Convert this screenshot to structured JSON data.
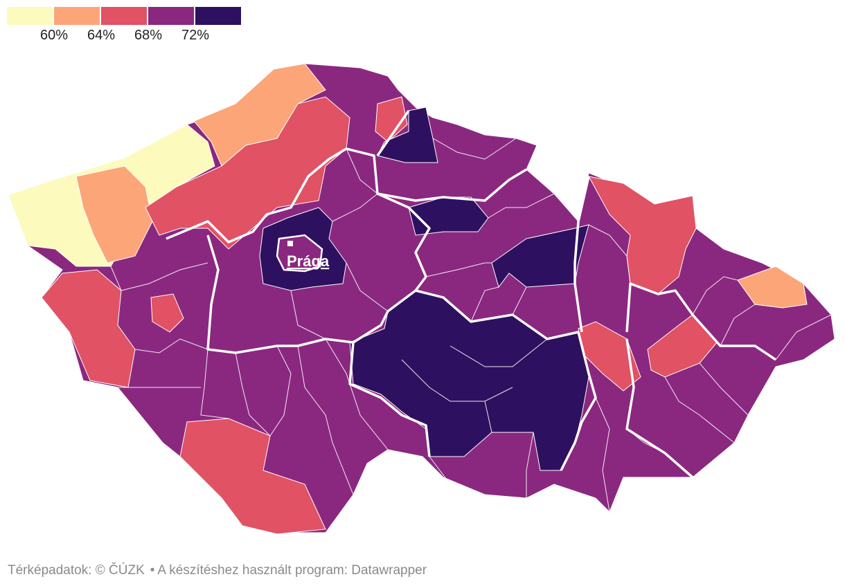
{
  "legend": {
    "colors": [
      "#fcfbbd",
      "#fca579",
      "#e05264",
      "#8a2880",
      "#2e1060"
    ],
    "ticks": [
      "60%",
      "64%",
      "68%",
      "72%"
    ]
  },
  "map": {
    "label": "Prága",
    "border_color": "#ffffff"
  },
  "footer": {
    "source": "Térképadatok: © ČÚZK",
    "tool": "A készítéshez használt program: Datawrapper"
  }
}
